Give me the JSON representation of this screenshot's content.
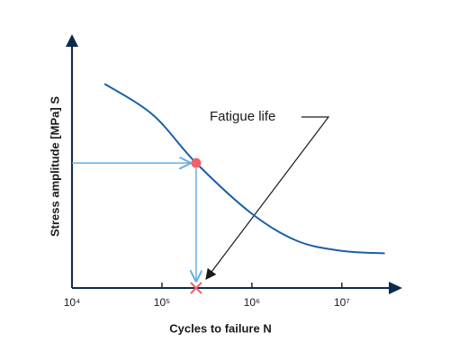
{
  "chart_data": {
    "type": "line",
    "x_label": "Cycles to failure N",
    "y_label": "Stress amplitude  [MPa] S",
    "xlog": true,
    "xlim": [
      10000,
      47000000
    ],
    "ylim": [
      0,
      100
    ],
    "xticks": [
      {
        "value": 10000,
        "label": "10⁴"
      },
      {
        "value": 100000,
        "label": "10⁵"
      },
      {
        "value": 1000000,
        "label": "10⁶"
      },
      {
        "value": 10000000,
        "label": "10⁷"
      }
    ],
    "x": [
      23000,
      79000,
      240000,
      1000000,
      3200000,
      10000000,
      30000000
    ],
    "values": [
      82.5,
      70,
      50.5,
      30,
      19,
      15,
      14
    ],
    "color": "#1a5fa8",
    "marker": {
      "x": 240000,
      "y": 50.5,
      "color": "#f0616d"
    },
    "annotation": "Fatigue life"
  }
}
